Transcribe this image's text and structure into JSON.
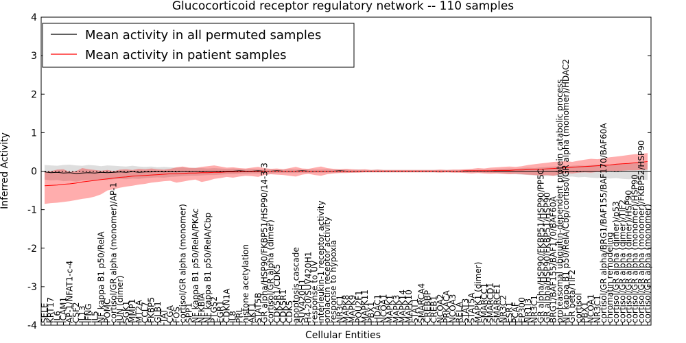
{
  "chart_data": {
    "type": "line",
    "title": "Glucocorticoid receptor regulatory network -- 110 samples",
    "xlabel": "Cellular Entities",
    "ylabel": "Inferred Activity",
    "ylim": [
      -4,
      4
    ],
    "yticks": [
      -4,
      -3,
      -2,
      -1,
      0,
      1,
      2,
      3,
      4
    ],
    "grid": false,
    "legend_position": "top-left",
    "categories": [
      "SELE",
      "KRT17",
      "IL6",
      "ICAM1",
      "AP-1/NFAT1-c-4",
      "CSF2",
      "IL13",
      "IFNG",
      "IL5",
      "NF kappa B1 p50/RelA",
      "POMC",
      "cortisol/GR alpha (monomer)/AP-1",
      "JUN (dimer)",
      "SGK1",
      "MMP1",
      "MT2A",
      "CCL7",
      "FKBP5",
      "GLB1",
      "TAT",
      "CGA",
      "FOS",
      "cortisol/GR alpha (monomer)",
      "SPP1",
      "NF kappa B1 p50/RelA/PKAc",
      "NFKBIA",
      "NF kappa B1 p50/RelA/Cbp",
      "PTGS2",
      "EGR1",
      "CDKN1A",
      "IL8",
      "PRL",
      "histone acetylation",
      "AKT1",
      "STAT5B",
      "GR alpha/HSP90/FKBP51/HSP90/14-3-3",
      "cortisol/GR alpha (dimer)",
      "CDK5R1/CDK5",
      "CDK5R1",
      "CDK5",
      "apoptosis cascade",
      "SUV420H1",
      "H4-20/SUV420H1",
      "response to UV",
      "interleukin-1 receptor activity",
      "prolactin receptor activity",
      "response to hypoxia",
      "NR3C1",
      "MAPK8",
      "MAPK9",
      "POU2F1",
      "MAPK11",
      "PBX1",
      "HDAC1",
      "NCOA1",
      "MAPK1",
      "MAPK3",
      "MAPK14",
      "MAPK10",
      "STAT1",
      "SMARCA4",
      "CREBBP",
      "CREB1",
      "NCOA2",
      "PRKACA",
      "NCOA3",
      "RELA",
      "STAT3",
      "STAT5A",
      "MAPK1 (dimer)",
      "SMARCC1",
      "SMARCD1",
      "SMARCE1",
      "NR3C2",
      "ESR1",
      "PCAF",
      "EP300",
      "NR1I3",
      "NR3C1",
      "GR alpha/HSP90/FKBP51/HSP90/PP5C",
      "GR alpha/HSP90/FKBP51/HSP90",
      "BRG1/BAF155/BAF170/BAF60A",
      "proteasomal ubiquitin-dependent protein catabolic process",
      "NF kappa B1 p50/RelA/Cbp/cortisol/GR alpha (monomer)/HDAC2",
      "GR beta/TIF2",
      "cortisol",
      "PBX1",
      "NCOA1",
      "NR3C1",
      "cortisol/GR alpha/BRG1/BAF155/BAF170/BAF60A",
      "chromatin remodeling",
      "cortisol/GR alpha (dimer)/p53",
      "cortisol/GR alpha (dimer)/TIF2",
      "cortisol/GR alpha (dimer)/HSP90",
      "cortisol/GR alpha (monomer)/HSP90",
      "cortisol/GR alpha (monomer)/FKBP52/HSP90",
      "cortisol/GR alpha (monomer)"
    ],
    "series": [
      {
        "name": "Mean activity in all permuted samples",
        "color": "#000000",
        "values": [
          -0.02,
          -0.04,
          -0.03,
          -0.05,
          -0.04,
          -0.06,
          -0.05,
          -0.04,
          -0.05,
          -0.03,
          -0.04,
          -0.03,
          -0.02,
          -0.03,
          -0.01,
          -0.03,
          -0.02,
          -0.02,
          -0.01,
          -0.02,
          -0.01,
          -0.02,
          0.0,
          -0.01,
          0.0,
          -0.01,
          0.0,
          0.0,
          -0.01,
          0.0,
          0.0,
          0.01,
          0.0,
          0.0,
          0.01,
          0.0,
          0.0,
          0.01,
          0.0,
          0.0,
          0.0,
          0.01,
          0.0,
          0.0,
          0.0,
          0.0,
          0.0,
          0.01,
          0.0,
          0.0,
          0.0,
          0.0,
          0.0,
          0.0,
          0.0,
          0.0,
          0.0,
          0.0,
          0.0,
          0.0,
          0.0,
          0.0,
          0.0,
          0.0,
          0.0,
          0.0,
          0.0,
          0.0,
          0.0,
          0.0,
          0.0,
          0.0,
          0.0,
          0.0,
          0.0,
          0.0,
          0.0,
          0.0,
          0.0,
          0.0,
          0.0,
          0.0,
          -0.01,
          0.0,
          0.0,
          -0.01,
          0.0,
          0.0,
          0.0,
          0.0,
          0.0,
          -0.01,
          0.0,
          0.0,
          0.0,
          0.0,
          0.0
        ],
        "band_upper": [
          0.16,
          0.15,
          0.14,
          0.16,
          0.17,
          0.15,
          0.14,
          0.16,
          0.15,
          0.13,
          0.15,
          0.14,
          0.13,
          0.12,
          0.14,
          0.12,
          0.11,
          0.12,
          0.1,
          0.11,
          0.1,
          0.09,
          0.1,
          0.08,
          0.09,
          0.08,
          0.07,
          0.08,
          0.07,
          0.06,
          0.07,
          0.06,
          0.05,
          0.06,
          0.05,
          0.04,
          0.05,
          0.04,
          0.04,
          0.05,
          0.04,
          0.04,
          0.05,
          0.04,
          0.04,
          0.05,
          0.04,
          0.04,
          0.04,
          0.03,
          0.04,
          0.03,
          0.03,
          0.04,
          0.03,
          0.03,
          0.03,
          0.03,
          0.03,
          0.03,
          0.03,
          0.03,
          0.03,
          0.03,
          0.03,
          0.03,
          0.03,
          0.03,
          0.03,
          0.03,
          0.04,
          0.04,
          0.05,
          0.06,
          0.07,
          0.06,
          0.08,
          0.09,
          0.08,
          0.1,
          0.11,
          0.12,
          0.13,
          0.12,
          0.14,
          0.15,
          0.14,
          0.16,
          0.17,
          0.18,
          0.17,
          0.19,
          0.18,
          0.2,
          0.22,
          0.21,
          0.22
        ],
        "band_lower": [
          -0.22,
          -0.24,
          -0.23,
          -0.26,
          -0.25,
          -0.27,
          -0.24,
          -0.23,
          -0.25,
          -0.22,
          -0.23,
          -0.21,
          -0.2,
          -0.21,
          -0.19,
          -0.2,
          -0.18,
          -0.17,
          -0.16,
          -0.17,
          -0.15,
          -0.14,
          -0.13,
          -0.12,
          -0.12,
          -0.11,
          -0.1,
          -0.1,
          -0.09,
          -0.08,
          -0.08,
          -0.07,
          -0.07,
          -0.06,
          -0.06,
          -0.05,
          -0.06,
          -0.05,
          -0.05,
          -0.05,
          -0.05,
          -0.04,
          -0.05,
          -0.04,
          -0.04,
          -0.04,
          -0.04,
          -0.04,
          -0.03,
          -0.04,
          -0.03,
          -0.03,
          -0.03,
          -0.03,
          -0.03,
          -0.03,
          -0.03,
          -0.03,
          -0.03,
          -0.03,
          -0.03,
          -0.03,
          -0.03,
          -0.03,
          -0.03,
          -0.03,
          -0.03,
          -0.03,
          -0.03,
          -0.03,
          -0.04,
          -0.04,
          -0.05,
          -0.06,
          -0.07,
          -0.08,
          -0.09,
          -0.1,
          -0.11,
          -0.12,
          -0.13,
          -0.12,
          -0.14,
          -0.15,
          -0.14,
          -0.16,
          -0.15,
          -0.17,
          -0.18,
          -0.17,
          -0.19,
          -0.18,
          -0.2,
          -0.21,
          -0.2,
          -0.22,
          -0.23
        ]
      },
      {
        "name": "Mean activity in patient samples",
        "color": "#ff0000",
        "values": [
          -0.38,
          -0.37,
          -0.36,
          -0.34,
          -0.33,
          -0.31,
          -0.28,
          -0.26,
          -0.24,
          -0.22,
          -0.2,
          -0.18,
          -0.16,
          -0.15,
          -0.13,
          -0.12,
          -0.11,
          -0.1,
          -0.09,
          -0.08,
          -0.07,
          -0.07,
          -0.06,
          -0.05,
          -0.05,
          -0.04,
          -0.04,
          -0.03,
          -0.03,
          -0.02,
          -0.02,
          -0.02,
          -0.01,
          -0.01,
          -0.01,
          0.0,
          0.0,
          0.0,
          0.0,
          0.0,
          0.0,
          0.0,
          0.0,
          0.0,
          0.0,
          0.0,
          0.0,
          0.0,
          0.0,
          0.0,
          0.0,
          0.0,
          0.0,
          0.0,
          0.0,
          0.0,
          0.0,
          0.0,
          0.0,
          0.0,
          0.0,
          0.0,
          0.0,
          0.0,
          0.0,
          0.0,
          0.0,
          0.01,
          0.01,
          0.01,
          0.01,
          0.01,
          0.02,
          0.02,
          0.02,
          0.03,
          0.03,
          0.04,
          0.05,
          0.05,
          0.06,
          0.07,
          0.08,
          0.09,
          0.1,
          0.11,
          0.12,
          0.13,
          0.14,
          0.15,
          0.16,
          0.18,
          0.19,
          0.2,
          0.22,
          0.23,
          0.25
        ],
        "band_upper": [
          -0.02,
          0.0,
          0.04,
          0.05,
          -0.02,
          0.0,
          0.08,
          0.05,
          0.03,
          0.01,
          0.03,
          0.0,
          0.04,
          0.05,
          0.03,
          0.06,
          0.05,
          0.07,
          0.05,
          0.04,
          0.06,
          0.1,
          0.12,
          0.09,
          0.08,
          0.11,
          0.13,
          0.15,
          0.12,
          0.09,
          0.1,
          0.08,
          0.07,
          0.09,
          0.11,
          0.08,
          0.06,
          0.07,
          0.05,
          0.08,
          0.11,
          0.07,
          0.06,
          0.09,
          0.12,
          0.08,
          0.06,
          0.05,
          0.06,
          0.05,
          0.04,
          0.05,
          0.03,
          0.04,
          0.03,
          0.03,
          0.03,
          0.03,
          0.03,
          0.03,
          0.03,
          0.03,
          0.03,
          0.04,
          0.03,
          0.04,
          0.04,
          0.05,
          0.06,
          0.08,
          0.07,
          0.09,
          0.1,
          0.11,
          0.12,
          0.11,
          0.13,
          0.16,
          0.18,
          0.2,
          0.22,
          0.24,
          0.25,
          0.26,
          0.24,
          0.27,
          0.3,
          0.32,
          0.31,
          0.33,
          0.36,
          0.38,
          0.4,
          0.42,
          0.44,
          0.45,
          0.47
        ],
        "band_lower": [
          -0.85,
          -0.83,
          -0.82,
          -0.8,
          -0.78,
          -0.75,
          -0.72,
          -0.7,
          -0.66,
          -0.6,
          -0.5,
          -0.47,
          -0.43,
          -0.4,
          -0.38,
          -0.35,
          -0.33,
          -0.3,
          -0.28,
          -0.26,
          -0.25,
          -0.3,
          -0.27,
          -0.24,
          -0.22,
          -0.28,
          -0.25,
          -0.2,
          -0.18,
          -0.15,
          -0.17,
          -0.14,
          -0.12,
          -0.13,
          -0.15,
          -0.1,
          -0.08,
          -0.09,
          -0.1,
          -0.12,
          -0.14,
          -0.09,
          -0.07,
          -0.1,
          -0.12,
          -0.08,
          -0.06,
          -0.05,
          -0.05,
          -0.04,
          -0.04,
          -0.03,
          -0.03,
          -0.03,
          -0.03,
          -0.03,
          -0.03,
          -0.03,
          -0.03,
          -0.03,
          -0.03,
          -0.03,
          -0.03,
          -0.04,
          -0.03,
          -0.04,
          -0.04,
          -0.05,
          -0.06,
          -0.05,
          -0.06,
          -0.07,
          -0.06,
          -0.07,
          -0.08,
          -0.07,
          -0.08,
          -0.09,
          -0.1,
          -0.11,
          -0.1,
          -0.12,
          -0.08,
          -0.05,
          -0.06,
          -0.04,
          -0.03,
          -0.04,
          -0.02,
          -0.03,
          -0.01,
          0.0,
          0.01,
          0.02,
          0.02,
          0.03,
          0.04
        ]
      }
    ]
  }
}
